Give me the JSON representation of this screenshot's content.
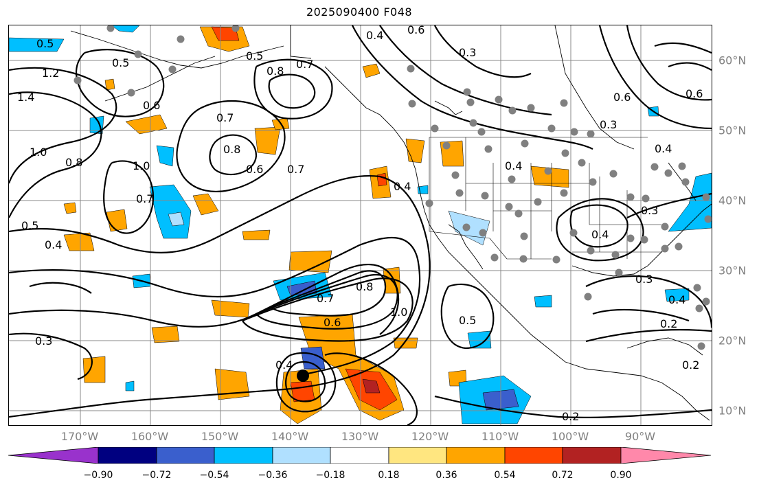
{
  "title": "2025090400 F048",
  "lon_labels": [
    "170°W",
    "160°W",
    "150°W",
    "140°W",
    "130°W",
    "120°W",
    "110°W",
    "100°W",
    "90°W"
  ],
  "lat_labels": [
    "60°N",
    "50°N",
    "40°N",
    "30°N",
    "20°N",
    "10°N"
  ],
  "colorbar": {
    "ticks": [
      "−0.90",
      "−0.72",
      "−0.54",
      "−0.36",
      "−0.18",
      "0.18",
      "0.36",
      "0.54",
      "0.72",
      "0.90"
    ],
    "colors": [
      "#9932cc",
      "#000080",
      "#3a5fcd",
      "#00bfff",
      "#b0e0ff",
      "#ffffff",
      "#ffe680",
      "#ffa500",
      "#ff4500",
      "#b22222",
      "#ff88aa"
    ]
  },
  "contour_labels": [
    "0.5",
    "0.6",
    "0.5",
    "0.4",
    "0.3",
    "0.8",
    "0.7",
    "0.5",
    "1.2",
    "1.4",
    "1.0",
    "0.6",
    "0.7",
    "0.8",
    "0.6",
    "0.7",
    "1.0",
    "0.8",
    "0.7",
    "0.5",
    "0.4",
    "0.4",
    "0.7",
    "0.6",
    "1.0",
    "0.8",
    "0.5",
    "0.4",
    "0.3",
    "0.4",
    "0.6",
    "0.3",
    "0.6",
    "0.4",
    "0.3",
    "0.4",
    "0.4",
    "0.3",
    "0.2",
    "0.2",
    "0.2"
  ],
  "icons": {
    "storm_center": "tropical-cyclone-marker-icon",
    "station": "gray-station-dot-icon"
  }
}
